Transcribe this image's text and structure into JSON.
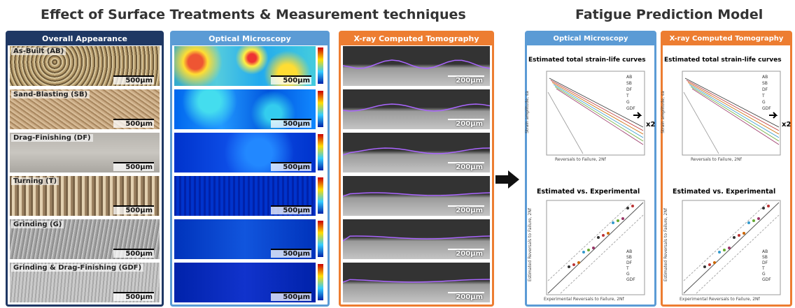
{
  "left_title": "Effect of Surface Treatments & Measurement techniques",
  "right_title": "Fatigue Prediction Model",
  "columns": [
    {
      "header": "Overall Appearance"
    },
    {
      "header": "Optical Microscopy"
    },
    {
      "header": "X-ray Computed Tomography"
    }
  ],
  "samples": [
    {
      "label": "As-Built (AB)",
      "photo_scale": "500µm",
      "om_scale": "500µm",
      "ct_scale": "200µm"
    },
    {
      "label": "Sand-Blasting (SB)",
      "photo_scale": "500µm",
      "om_scale": "500µm",
      "ct_scale": "200µm"
    },
    {
      "label": "Drag-Finishing (DF)",
      "photo_scale": "500µm",
      "om_scale": "500µm",
      "ct_scale": "200µm"
    },
    {
      "label": "Turning (T)",
      "photo_scale": "500µm",
      "om_scale": "500µm",
      "ct_scale": "200µm"
    },
    {
      "label": "Grinding (G)",
      "photo_scale": "500µm",
      "om_scale": "500µm",
      "ct_scale": "200µm"
    },
    {
      "label": "Grinding & Drag-Finishing (GDF)",
      "photo_scale": "500µm",
      "om_scale": "500µm",
      "ct_scale": "200µm"
    }
  ],
  "models": [
    {
      "header": "Optical Microscopy",
      "plot1_title": "Estimated total strain-life curves",
      "plot1_xlabel": "Reversals to Failure, 2Nf",
      "plot1_ylabel": "Strain amplitude, εa",
      "plot1_note": "x2",
      "plot2_title": "Estimated vs. Experimental",
      "plot2_xlabel": "Experimental Reversals to Failure, 2Nf",
      "plot2_ylabel": "Estimated Reversals to Failure, 2Nf"
    },
    {
      "header": "X-ray Computed Tomography",
      "plot1_title": "Estimated total strain-life curves",
      "plot1_xlabel": "Reversals to Failure, 2Nf",
      "plot1_ylabel": "Strain amplitude, εa",
      "plot1_note": "x2",
      "plot2_title": "Estimated vs. Experimental",
      "plot2_xlabel": "Experimental Reversals to Failure, 2Nf",
      "plot2_ylabel": "Estimated Reversals to Failure, 2Nf"
    }
  ],
  "legend": [
    "AB",
    "SB",
    "DF",
    "T",
    "G",
    "GDF"
  ]
}
